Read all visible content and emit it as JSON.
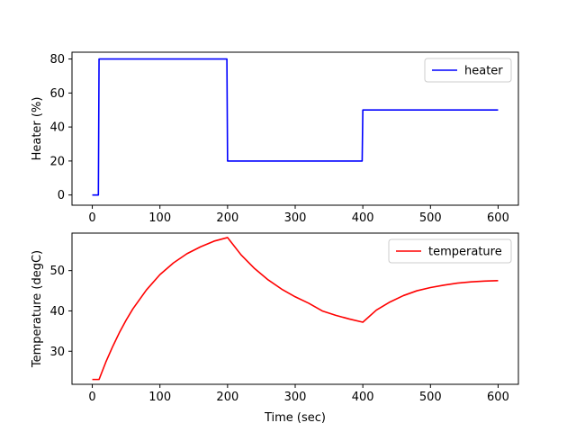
{
  "chart_data": [
    {
      "type": "line",
      "title": "",
      "xlabel": "",
      "ylabel": "Heater (%)",
      "xlim": [
        -30,
        630
      ],
      "ylim": [
        -6,
        84
      ],
      "xticks": [
        0,
        100,
        200,
        300,
        400,
        500,
        600
      ],
      "yticks": [
        0,
        20,
        40,
        60,
        80
      ],
      "xtick_labels": [
        "0",
        "100",
        "200",
        "300",
        "400",
        "500",
        "600"
      ],
      "ytick_labels": [
        "0",
        "20",
        "40",
        "60",
        "80"
      ],
      "grid": false,
      "legend_position": "top-right",
      "series": [
        {
          "name": "heater",
          "color": "#0000ff",
          "x": [
            0,
            9,
            10,
            199,
            200,
            399,
            400,
            600
          ],
          "y": [
            0,
            0,
            80,
            80,
            20,
            20,
            50,
            50
          ]
        }
      ]
    },
    {
      "type": "line",
      "title": "",
      "xlabel": "Time (sec)",
      "ylabel": "Temperature (degC)",
      "xlim": [
        -30,
        630
      ],
      "ylim": [
        21.8,
        59.3
      ],
      "xticks": [
        0,
        100,
        200,
        300,
        400,
        500,
        600
      ],
      "yticks": [
        30,
        40,
        50
      ],
      "xtick_labels": [
        "0",
        "100",
        "200",
        "300",
        "400",
        "500",
        "600"
      ],
      "ytick_labels": [
        "30",
        "40",
        "50"
      ],
      "grid": false,
      "legend_position": "top-right",
      "series": [
        {
          "name": "temperature",
          "color": "#ff0000",
          "x": [
            0,
            10,
            20,
            30,
            40,
            50,
            60,
            80,
            100,
            120,
            140,
            160,
            180,
            200,
            220,
            240,
            260,
            280,
            300,
            320,
            340,
            360,
            380,
            400,
            420,
            440,
            460,
            480,
            500,
            520,
            540,
            560,
            580,
            600
          ],
          "y": [
            23.0,
            23.0,
            27.3,
            31.1,
            34.6,
            37.7,
            40.5,
            45.2,
            49.0,
            51.9,
            54.2,
            55.9,
            57.3,
            58.2,
            53.9,
            50.5,
            47.7,
            45.4,
            43.5,
            41.9,
            40.0,
            38.9,
            38.0,
            37.2,
            40.2,
            42.2,
            43.8,
            45.0,
            45.8,
            46.4,
            46.9,
            47.2,
            47.4,
            47.5
          ]
        }
      ]
    }
  ]
}
